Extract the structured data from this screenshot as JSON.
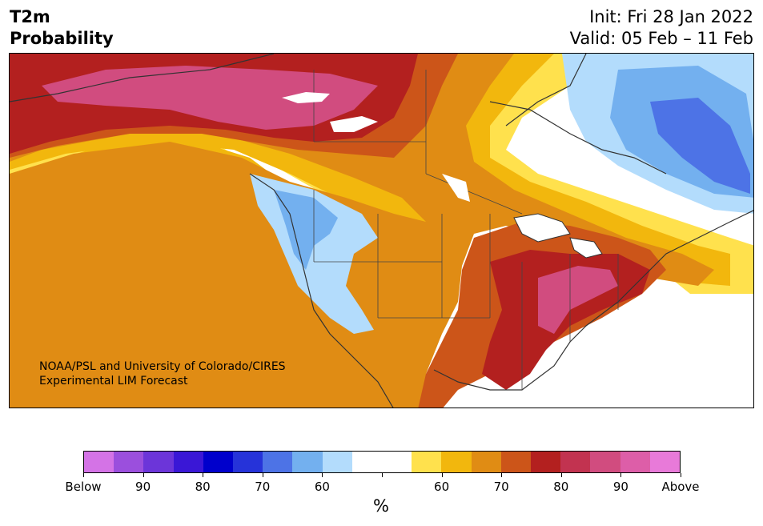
{
  "header": {
    "variable": "T2m",
    "product": "Probability",
    "init": "Init: Fri 28 Jan 2022",
    "valid": "Valid: 05 Feb – 11 Feb"
  },
  "credit": {
    "line1": "NOAA/PSL and University of Colorado/CIRES",
    "line2": "Experimental LIM Forecast"
  },
  "colorbar": {
    "colors": [
      "#d473e6",
      "#9b4fdd",
      "#6c35d9",
      "#3a17d6",
      "#0000cc",
      "#2633d9",
      "#4d73e6",
      "#73b0ef",
      "#b3dcfc",
      "#ffffff",
      "#ffffff",
      "#ffe14d",
      "#f2b70d",
      "#e08c14",
      "#cc5519",
      "#b3201f",
      "#c23350",
      "#d14c7f",
      "#dd5ea8",
      "#e87ad9"
    ],
    "labels": [
      "Below",
      "90",
      "80",
      "70",
      "60",
      "",
      "60",
      "70",
      "80",
      "90",
      "Above"
    ],
    "unit": "%"
  },
  "map": {
    "fill_colors": {
      "above_95": "#d14c7f",
      "above_85": "#b3201f",
      "above_75": "#cc5519",
      "above_70": "#e08c14",
      "above_65": "#f2b70d",
      "above_60": "#ffe14d",
      "below_60": "#b3dcfc",
      "below_70": "#73b0ef",
      "below_80": "#4d73e6"
    }
  }
}
